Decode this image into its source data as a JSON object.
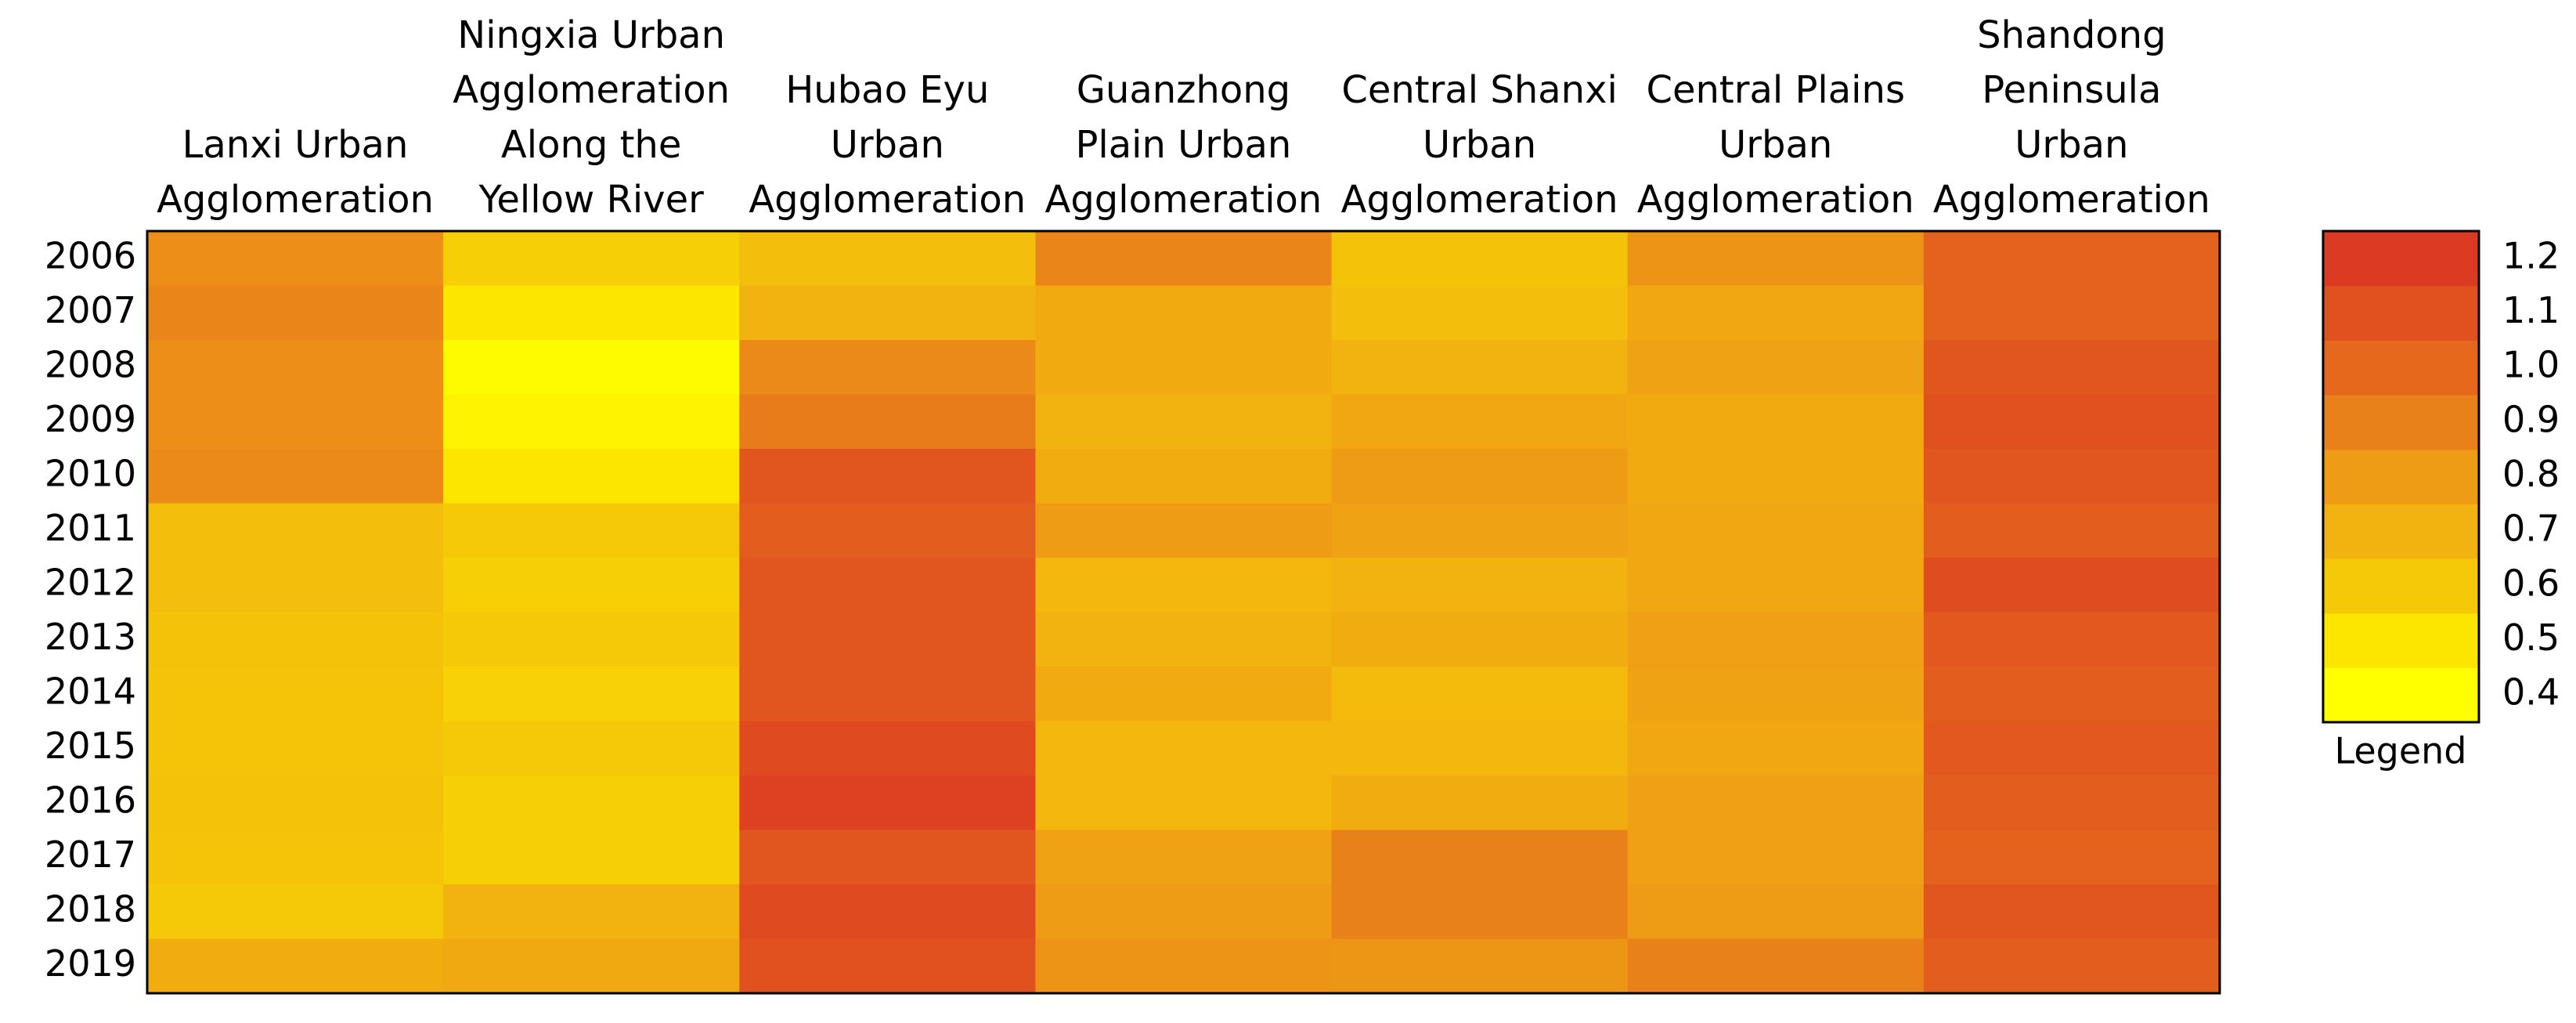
{
  "chart_data": {
    "type": "heatmap",
    "columns": [
      "Lanxi Urban Agglomeration",
      "Ningxia Urban Agglomeration Along the Yellow River",
      "Hubao Eyu Urban Agglomeration",
      "Guanzhong Plain Urban Agglomeration",
      "Central Shanxi Urban Agglomeration",
      "Central Plains Urban Agglomeration",
      "Shandong Peninsula Urban Agglomeration"
    ],
    "rows": [
      "2006",
      "2007",
      "2008",
      "2009",
      "2010",
      "2011",
      "2012",
      "2013",
      "2014",
      "2015",
      "2016",
      "2017",
      "2018",
      "2019"
    ],
    "values": [
      [
        0.85,
        0.58,
        0.65,
        0.88,
        0.63,
        0.83,
        1.03
      ],
      [
        0.88,
        0.5,
        0.7,
        0.73,
        0.65,
        0.75,
        1.03
      ],
      [
        0.85,
        0.42,
        0.87,
        0.73,
        0.7,
        0.77,
        1.08
      ],
      [
        0.85,
        0.45,
        0.92,
        0.7,
        0.75,
        0.73,
        1.1
      ],
      [
        0.87,
        0.5,
        1.08,
        0.72,
        0.8,
        0.73,
        1.08
      ],
      [
        0.65,
        0.6,
        1.05,
        0.8,
        0.77,
        0.75,
        1.05
      ],
      [
        0.65,
        0.58,
        1.08,
        0.68,
        0.7,
        0.75,
        1.12
      ],
      [
        0.63,
        0.6,
        1.08,
        0.7,
        0.72,
        0.78,
        1.07
      ],
      [
        0.62,
        0.57,
        1.08,
        0.73,
        0.66,
        0.77,
        1.05
      ],
      [
        0.62,
        0.6,
        1.13,
        0.68,
        0.68,
        0.75,
        1.07
      ],
      [
        0.63,
        0.58,
        1.17,
        0.68,
        0.72,
        0.78,
        1.05
      ],
      [
        0.62,
        0.58,
        1.08,
        0.77,
        0.9,
        0.78,
        1.03
      ],
      [
        0.6,
        0.7,
        1.13,
        0.8,
        0.9,
        0.8,
        1.08
      ],
      [
        0.72,
        0.74,
        1.1,
        0.83,
        0.82,
        0.9,
        1.05
      ]
    ],
    "colorbar": {
      "ticks": [
        0.4,
        0.5,
        0.6,
        0.7,
        0.8,
        0.9,
        {
          "value": 1,
          "label": "1.0"
        },
        1.1,
        1.2
      ],
      "colors": [
        "#ffff00",
        "#fce600",
        "#f6c908",
        "#f2b20f",
        "#ee9b15",
        "#e9811a",
        "#e5681d",
        "#e0511f",
        "#dc3a22"
      ]
    },
    "legend_title": "Legend"
  }
}
